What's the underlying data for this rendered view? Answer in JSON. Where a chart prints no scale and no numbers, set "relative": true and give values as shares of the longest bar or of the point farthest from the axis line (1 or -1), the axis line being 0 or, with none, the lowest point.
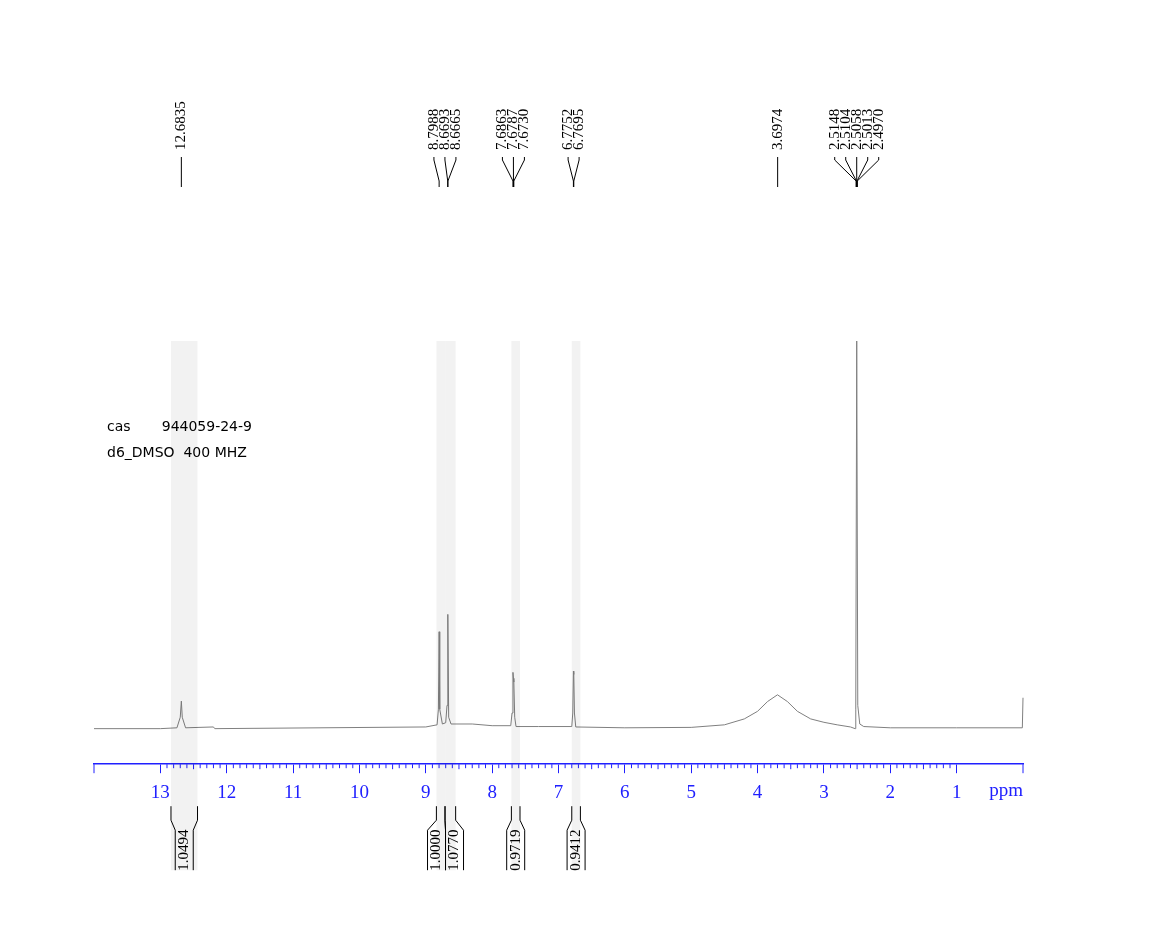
{
  "chart_data": {
    "type": "line",
    "relative": true,
    "xlabel": "ppm",
    "marker": "none",
    "line_style": "solid",
    "xlim": [
      14,
      0
    ],
    "xticks": [
      13,
      12,
      11,
      10,
      9,
      8,
      7,
      6,
      5,
      4,
      3,
      2,
      1
    ],
    "x": [
      14,
      13.0,
      12.75,
      12.7,
      12.6835,
      12.67,
      12.62,
      12.2,
      12.18,
      9.0,
      8.83,
      8.81,
      8.7988,
      8.79,
      8.75,
      8.7,
      8.68,
      8.668,
      8.655,
      8.62,
      8.3,
      8.0,
      7.72,
      7.7,
      7.6863,
      7.6787,
      7.673,
      7.66,
      7.64,
      7.3,
      6.8,
      6.785,
      6.7752,
      6.7695,
      6.76,
      6.74,
      6.0,
      5.0,
      4.5,
      4.2,
      4.0,
      3.85,
      3.7,
      3.55,
      3.4,
      3.2,
      3.0,
      2.8,
      2.6,
      2.53,
      2.52,
      2.5058,
      2.49,
      2.46,
      2.4,
      2.0,
      1.0,
      0.01,
      0.0
    ],
    "series": [
      {
        "color": "#808080",
        "values": [
          0.084,
          0.084,
          0.086,
          0.111,
          0.149,
          0.111,
          0.086,
          0.088,
          0.084,
          0.088,
          0.093,
          0.13,
          0.313,
          0.13,
          0.095,
          0.098,
          0.139,
          0.354,
          0.111,
          0.095,
          0.095,
          0.091,
          0.091,
          0.121,
          0.217,
          0.203,
          0.194,
          0.111,
          0.089,
          0.089,
          0.089,
          0.121,
          0.22,
          0.212,
          0.121,
          0.088,
          0.086,
          0.087,
          0.093,
          0.107,
          0.125,
          0.148,
          0.164,
          0.148,
          0.125,
          0.107,
          0.099,
          0.093,
          0.088,
          0.084,
          0.13,
          1.0,
          0.139,
          0.095,
          0.089,
          0.086,
          0.086,
          0.086,
          0.157
        ]
      }
    ],
    "annotations": [
      "cas       944059-24-9",
      "d6_DMSO  400 MHZ",
      {
        "text": "12.6835",
        "x": 12.6835
      },
      {
        "text": "8.7988",
        "x": 8.7988
      },
      {
        "text": "8.6693",
        "x": 8.6693
      },
      {
        "text": "8.6665",
        "x": 8.6665
      },
      {
        "text": "7.6863",
        "x": 7.6863
      },
      {
        "text": "7.6787",
        "x": 7.6787
      },
      {
        "text": "7.6730",
        "x": 7.673
      },
      {
        "text": "6.7752",
        "x": 6.7752
      },
      {
        "text": "6.7695",
        "x": 6.7695
      },
      {
        "text": "3.6974",
        "x": 3.6974
      },
      {
        "text": "2.5148",
        "x": 2.5148
      },
      {
        "text": "2.5104",
        "x": 2.5104
      },
      {
        "text": "2.5058",
        "x": 2.5058
      },
      {
        "text": "2.5013",
        "x": 2.5013
      },
      {
        "text": "2.4970",
        "x": 2.497
      }
    ],
    "bands": [
      {
        "axis": "x",
        "from": 12.84,
        "to": 12.44,
        "label": "1.0494"
      },
      {
        "axis": "x",
        "from": 8.84,
        "to": 8.71,
        "label": "1.0000"
      },
      {
        "axis": "x",
        "from": 8.71,
        "to": 8.55,
        "label": "1.0770"
      },
      {
        "axis": "x",
        "from": 7.71,
        "to": 7.58,
        "label": "0.9719"
      },
      {
        "axis": "x",
        "from": 6.8,
        "to": 6.67,
        "label": "0.9412"
      }
    ]
  }
}
